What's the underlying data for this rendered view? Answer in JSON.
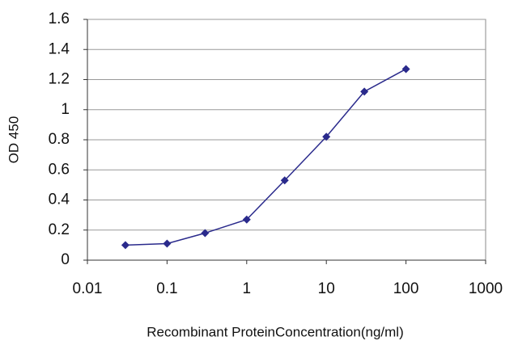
{
  "chart_data": {
    "type": "line",
    "x_label": "Recombinant ProteinConcentration(ng/ml)",
    "y_label": "OD 450",
    "xscale": "log",
    "x": [
      0.03,
      0.1,
      0.3,
      1,
      3,
      10,
      30,
      100
    ],
    "series": [
      {
        "color": "#2a2a8c",
        "values": [
          0.1,
          0.11,
          0.18,
          0.27,
          0.53,
          0.82,
          1.12,
          1.27
        ]
      }
    ],
    "xlim": [
      0.01,
      1000
    ],
    "xticks": [
      0.01,
      0.1,
      1,
      10,
      100,
      1000
    ],
    "ylim": [
      0,
      1.6
    ],
    "yticks": [
      0,
      0.2,
      0.4,
      0.6,
      0.8,
      1,
      1.2,
      1.4,
      1.6
    ],
    "grid": true
  }
}
